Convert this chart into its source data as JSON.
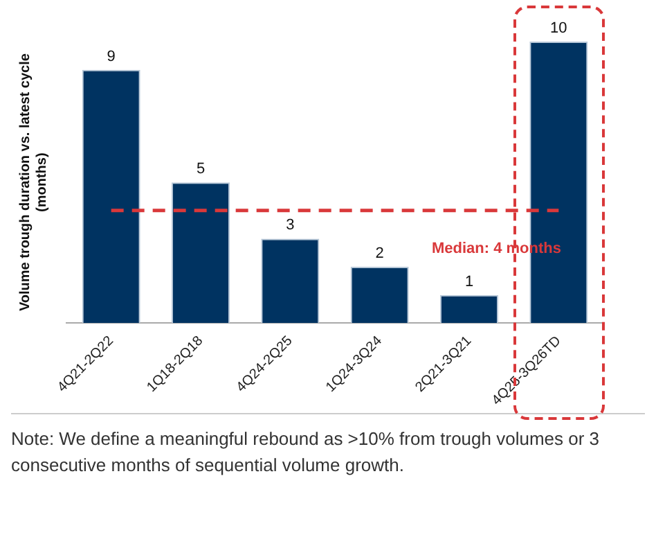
{
  "chart_data": {
    "type": "bar",
    "ylabel": "Volume trough duration vs. latest cycle\n(months)",
    "categories": [
      "4Q21-2Q22",
      "1Q18-2Q18",
      "4Q24-2Q25",
      "1Q24-3Q24",
      "2Q21-3Q21",
      "4Q25-3Q26TD"
    ],
    "values": [
      9,
      5,
      3,
      2,
      1,
      10
    ],
    "color": "#003361",
    "data_labels": true,
    "grid": false,
    "legend": false,
    "ref_lines": [
      {
        "axis": "y",
        "value": 4,
        "label": "Median: 4 months",
        "color": "#d9383a",
        "line_style": "dashed"
      }
    ],
    "annotations": [
      "Note: We define a meaningful rebound as >10% from trough volumes or 3 consecutive months of sequential volume growth."
    ]
  }
}
